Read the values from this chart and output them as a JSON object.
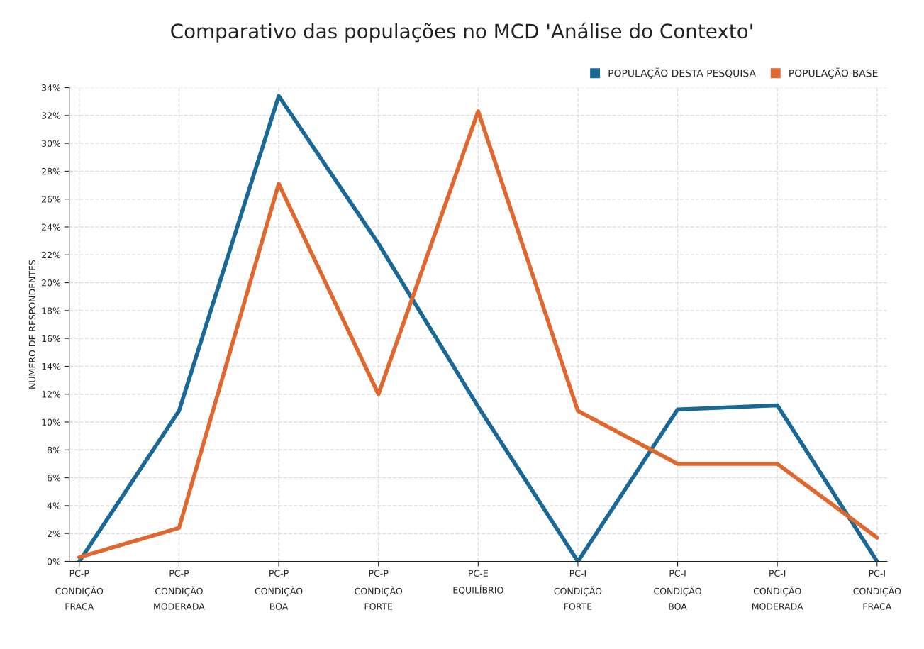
{
  "chart_data": {
    "type": "line",
    "title": "Comparativo das populações no MCD 'Análise do Contexto'",
    "ylabel": "NÚMERO DE RESPONDENTES",
    "categories": [
      "PC-P\nCONDIÇÃO\nFRACA",
      "PC-P\nCONDIÇÃO\nMODERADA",
      "PC-P\nCONDIÇÃO\nBOA",
      "PC-P\nCONDIÇÃO\nFORTE",
      "PC-E\nEQUILÍBRIO",
      "PC-I\nCONDIÇÃO\nFORTE",
      "PC-I\nCONDIÇÃO\nBOA",
      "PC-I\nCONDIÇÃO\nMODERADA",
      "PC-I\nCONDIÇÃO\nFRACA"
    ],
    "series": [
      {
        "name": "POPULAÇÃO DESTA PESQUISA",
        "color": "#1a6896",
        "values": [
          0,
          10.8,
          33.4,
          22.8,
          11.1,
          0,
          10.9,
          11.2,
          0
        ]
      },
      {
        "name": "POPULAÇÃO-BASE",
        "color": "#e0672e",
        "values": [
          0.3,
          2.4,
          27.1,
          12,
          32.3,
          10.8,
          7,
          7,
          1.7
        ]
      }
    ],
    "ylim": [
      0,
      34
    ],
    "yticks": [
      {
        "value": 0,
        "label": "0%"
      },
      {
        "value": 2,
        "label": "2%"
      },
      {
        "value": 4,
        "label": "4%"
      },
      {
        "value": 6,
        "label": "6%"
      },
      {
        "value": 8,
        "label": "8%"
      },
      {
        "value": 10,
        "label": "10%"
      },
      {
        "value": 12,
        "label": "12%"
      },
      {
        "value": 14,
        "label": "14%"
      },
      {
        "value": 16,
        "label": "16%"
      },
      {
        "value": 18,
        "label": "18%"
      },
      {
        "value": 20,
        "label": "20%"
      },
      {
        "value": 22,
        "label": "22%"
      },
      {
        "value": 24,
        "label": "24%"
      },
      {
        "value": 26,
        "label": "26%"
      },
      {
        "value": 28,
        "label": "28%"
      },
      {
        "value": 30,
        "label": "30%"
      },
      {
        "value": 32,
        "label": "32%"
      },
      {
        "value": 34,
        "label": "34%"
      }
    ],
    "grid": true,
    "legend": "top right",
    "marker": "none",
    "line_style": "solid"
  }
}
